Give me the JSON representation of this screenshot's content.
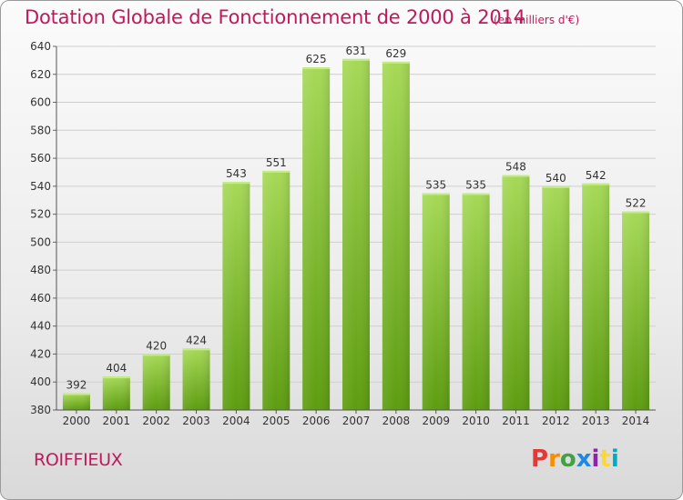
{
  "header": {
    "title": "Dotation Globale de Fonctionnement de 2000 à 2014",
    "unit": "(en milliers d'€)"
  },
  "footer": {
    "commune": "ROIFFIEUX",
    "logo": "Proxiti",
    "logo_colors": [
      "#e53935",
      "#fb8c00",
      "#43a047",
      "#1e88e5",
      "#8e24aa",
      "#fdd835",
      "#00acc1"
    ]
  },
  "colors": {
    "title": "#c2185b",
    "bar_top": "#a6d957",
    "bar_bottom": "#5d9c10"
  },
  "chart_data": {
    "type": "bar",
    "categories": [
      "2000",
      "2001",
      "2002",
      "2003",
      "2004",
      "2005",
      "2006",
      "2007",
      "2008",
      "2009",
      "2010",
      "2011",
      "2012",
      "2013",
      "2014"
    ],
    "values": [
      392,
      404,
      420,
      424,
      543,
      551,
      625,
      631,
      629,
      535,
      535,
      548,
      540,
      542,
      522
    ],
    "data_labels": [
      "392",
      "404",
      "420",
      "424",
      "543",
      "551",
      "625",
      "631",
      "629",
      "535",
      "535",
      "548",
      "540",
      "542",
      "522"
    ],
    "ylim": [
      380,
      640
    ],
    "yticks": [
      380,
      400,
      420,
      440,
      460,
      480,
      500,
      520,
      540,
      560,
      580,
      600,
      620,
      640
    ],
    "ytick_labels": [
      "380",
      "400",
      "420",
      "440",
      "460",
      "480",
      "500",
      "520",
      "540",
      "560",
      "580",
      "600",
      "620",
      "640"
    ],
    "grid": true,
    "title": "Dotation Globale de Fonctionnement de 2000 à 2014",
    "xlabel": "",
    "ylabel": ""
  }
}
